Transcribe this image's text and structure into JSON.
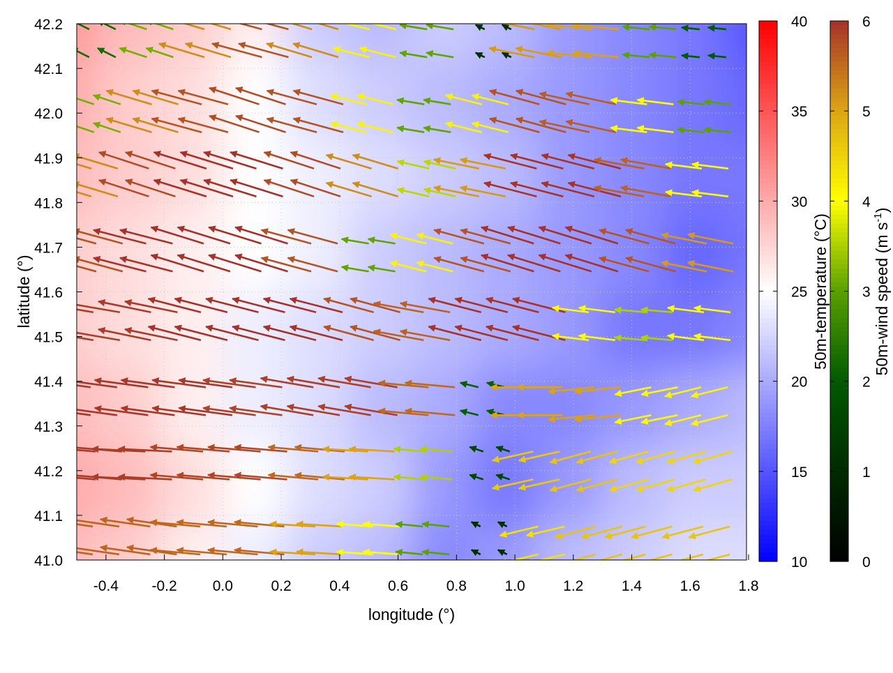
{
  "chart_data": {
    "type": "heatmap",
    "xlabel": "longitude (°)",
    "ylabel": "latitude (°)",
    "xlim": [
      -0.5,
      1.8
    ],
    "ylim": [
      41.0,
      42.2
    ],
    "xticks": [
      "-0.4",
      "-0.2",
      "0.0",
      "0.2",
      "0.4",
      "0.6",
      "0.8",
      "1.0",
      "1.2",
      "1.4",
      "1.6",
      "1.8"
    ],
    "yticks": [
      "41.0",
      "41.1",
      "41.2",
      "41.3",
      "41.4",
      "41.5",
      "41.6",
      "41.7",
      "41.8",
      "41.9",
      "42.0",
      "42.1",
      "42.2"
    ],
    "grid": true,
    "temperature": {
      "label": "50m-temperature (°C)",
      "range": [
        10,
        40
      ],
      "ticks": [
        "10",
        "15",
        "20",
        "25",
        "30",
        "35",
        "40"
      ],
      "colors": {
        "low": "#0000ff",
        "mid": "#ffffff",
        "high": "#ff0000"
      },
      "values_north_to_south": [
        [
          31,
          29,
          28,
          26,
          22,
          21,
          22,
          21,
          19,
          18,
          17,
          15
        ],
        [
          30,
          28,
          27,
          25,
          23,
          22,
          21,
          20,
          19,
          18,
          17,
          16
        ],
        [
          29,
          28,
          27,
          25,
          24,
          23,
          22,
          21,
          19,
          18,
          17,
          17
        ],
        [
          28,
          27,
          26,
          25,
          24,
          22,
          21,
          20,
          19,
          18,
          16,
          17
        ],
        [
          28,
          27,
          26,
          24,
          23,
          22,
          21,
          20,
          19,
          17,
          17,
          18
        ],
        [
          29,
          28,
          26,
          24,
          23,
          21,
          20,
          18,
          18,
          19,
          20,
          21
        ],
        [
          30,
          29,
          27,
          25,
          23,
          22,
          19,
          17,
          19,
          21,
          22,
          22
        ],
        [
          29,
          28,
          26,
          24,
          22,
          21,
          18,
          19,
          21,
          22,
          23,
          23
        ]
      ]
    },
    "wind": {
      "label": "50m-wind speed (m s",
      "label_sup": "-1",
      "label_end": ")",
      "range": [
        0,
        6
      ],
      "ticks": [
        "0",
        "1",
        "2",
        "3",
        "4",
        "5",
        "6"
      ],
      "palette": [
        "#000000",
        "#002a00",
        "#005a00",
        "#5aa000",
        "#ffff00",
        "#dca514",
        "#a5322a"
      ],
      "lons": [
        -0.4,
        -0.21,
        -0.02,
        0.17,
        0.36,
        0.55,
        0.74,
        0.93,
        1.12,
        1.31,
        1.5,
        1.69
      ],
      "lats": [
        42.15,
        41.99,
        41.84,
        41.68,
        41.52,
        41.36,
        41.21,
        41.05
      ],
      "u": [
        [
          -2,
          -3,
          -5,
          -5.5,
          -5,
          -4,
          -3,
          -1,
          -5,
          -5,
          -3,
          -2
        ],
        [
          -3,
          -5,
          -5.5,
          -5.5,
          -5.5,
          -4,
          -3,
          -4,
          -5.5,
          -5.5,
          -4,
          -3
        ],
        [
          -5,
          -5.5,
          -5.8,
          -5.8,
          -5.5,
          -5,
          -3.5,
          -5,
          -5.8,
          -5.8,
          -5.5,
          -4
        ],
        [
          -5.5,
          -5.8,
          -5.8,
          -5.8,
          -5.5,
          -3,
          -4,
          -5.5,
          -5.8,
          -5.8,
          -5.5,
          -5
        ],
        [
          -5.8,
          -5.8,
          -5.8,
          -5.8,
          -5.8,
          -5.5,
          -5.5,
          -5.8,
          -5.8,
          -4,
          -3.5,
          -4
        ],
        [
          -5.9,
          -5.9,
          -5.9,
          -5.8,
          -5.8,
          -5.8,
          -5.5,
          -2,
          -5,
          -5,
          -4,
          -4
        ],
        [
          -5.9,
          -5.9,
          -5.8,
          -5.8,
          -5.5,
          -5,
          -3.5,
          -1.5,
          -4.5,
          -4.5,
          -4.3,
          -4.3
        ],
        [
          -5.5,
          -5.5,
          -5.5,
          -5.5,
          -5,
          -4,
          -3,
          -1,
          -4.2,
          -4.5,
          -4.5,
          -4.5
        ]
      ],
      "v": [
        [
          1,
          1,
          1.5,
          1.5,
          1.5,
          1,
          0.5,
          0.5,
          1,
          0.5,
          0.3,
          0.2
        ],
        [
          1,
          1.5,
          1.5,
          1.8,
          1.5,
          1,
          0.5,
          1,
          1.5,
          1.2,
          0.5,
          0.3
        ],
        [
          1.5,
          1.8,
          1.8,
          1.8,
          1.8,
          1.5,
          0.8,
          1,
          1.5,
          1.5,
          1,
          0.5
        ],
        [
          1.5,
          1.5,
          1.8,
          1.8,
          1.5,
          0.5,
          1,
          1.5,
          1.8,
          1.8,
          1.5,
          1
        ],
        [
          1,
          1.2,
          1.5,
          1.5,
          1.5,
          1.5,
          1,
          1.5,
          1.5,
          0.5,
          0.3,
          0.5
        ],
        [
          0.8,
          0.8,
          0.8,
          0.8,
          1,
          1,
          0.5,
          0.5,
          0,
          -0.5,
          -0.8,
          -1
        ],
        [
          0.5,
          0.3,
          0.5,
          0.5,
          0.5,
          0.3,
          0.3,
          0.5,
          -1,
          -1.2,
          -1.2,
          -1.2
        ],
        [
          0.8,
          0.8,
          0.5,
          0.5,
          0.3,
          0.3,
          0.3,
          0.5,
          -1,
          -1.2,
          -1.2,
          -1.2
        ]
      ]
    }
  }
}
